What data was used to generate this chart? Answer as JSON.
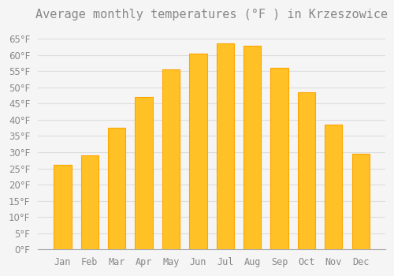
{
  "title": "Average monthly temperatures (°F ) in Krzeszowice",
  "months": [
    "Jan",
    "Feb",
    "Mar",
    "Apr",
    "May",
    "Jun",
    "Jul",
    "Aug",
    "Sep",
    "Oct",
    "Nov",
    "Dec"
  ],
  "values": [
    26,
    29,
    37.5,
    47,
    55.5,
    60.5,
    63.5,
    63,
    56,
    48.5,
    38.5,
    29.5
  ],
  "bar_color": "#FFC125",
  "bar_edge_color": "#FFA500",
  "background_color": "#F5F5F5",
  "grid_color": "#DDDDDD",
  "text_color": "#888888",
  "ylim": [
    0,
    68
  ],
  "yticks": [
    0,
    5,
    10,
    15,
    20,
    25,
    30,
    35,
    40,
    45,
    50,
    55,
    60,
    65
  ],
  "ylabel_suffix": "°F",
  "title_fontsize": 11,
  "tick_fontsize": 8.5
}
